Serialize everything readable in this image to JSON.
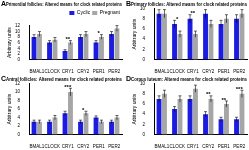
{
  "chart_data": [
    {
      "type": "bar",
      "panel_label": "A",
      "title": "Primordial follicles: Altered means for clock related proteins",
      "y_label": "Arbitrary units",
      "legend": "top-right",
      "categories": [
        "BMAL1",
        "CLOCK",
        "CRY1",
        "CRY2",
        "PER1",
        "PER2"
      ],
      "series": [
        {
          "name": "Cyclic",
          "color": "#1c1ce0",
          "values": [
            8,
            6,
            3,
            8,
            6,
            9
          ],
          "errors": [
            0.8,
            0.7,
            0.5,
            0.8,
            0.7,
            0.9
          ]
        },
        {
          "name": "Pregnant",
          "color": "#a6a6a6",
          "values": [
            9,
            7,
            6,
            9,
            8,
            11
          ],
          "errors": [
            0.9,
            0.8,
            0.7,
            0.9,
            0.8,
            1
          ]
        }
      ],
      "annotations": [
        {
          "category": "CRY1",
          "text": "**"
        },
        {
          "category": "PER1",
          "text": "*"
        }
      ],
      "ylim": [
        0,
        12
      ],
      "yticks": [
        0,
        2,
        4,
        6,
        8,
        10,
        12
      ]
    },
    {
      "type": "bar",
      "panel_label": "B",
      "title": "Primary follicles: Altered means for clock related proteins",
      "y_label": "Arbitrary units",
      "categories": [
        "BMAL1",
        "CLOCK",
        "CRY1",
        "CRY2",
        "PER1",
        "PER2"
      ],
      "series": [
        {
          "name": "Cyclic",
          "color": "#1c1ce0",
          "values": [
            9,
            7,
            8,
            9,
            7,
            8
          ],
          "errors": [
            0.8,
            0.7,
            0.8,
            0.8,
            0.7,
            0.8
          ]
        },
        {
          "name": "Pregnant",
          "color": "#a6a6a6",
          "values": [
            9,
            5,
            5,
            7,
            8,
            9
          ],
          "errors": [
            0.8,
            0.6,
            0.6,
            0.7,
            0.8,
            0.8
          ]
        }
      ],
      "annotations": [
        {
          "category": "CLOCK",
          "text": "*"
        },
        {
          "category": "CRY1",
          "text": "**"
        }
      ],
      "ylim": [
        0,
        10
      ],
      "yticks": [
        0,
        2,
        4,
        6,
        8,
        10
      ]
    },
    {
      "type": "bar",
      "panel_label": "C",
      "title": "Antral follicles: Altered means for clock related proteins",
      "y_label": "Arbitrary units",
      "categories": [
        "BMAL1",
        "CLOCK",
        "CRY1",
        "CRY2",
        "PER1",
        "PER2"
      ],
      "series": [
        {
          "name": "Cyclic",
          "color": "#1c1ce0",
          "values": [
            3,
            3,
            5,
            3,
            4,
            3
          ],
          "errors": [
            0.4,
            0.4,
            0.5,
            0.4,
            0.4,
            0.4
          ]
        },
        {
          "name": "Pregnant",
          "color": "#a6a6a6",
          "values": [
            3,
            4,
            10,
            5,
            3,
            4
          ],
          "errors": [
            0.4,
            0.5,
            0.9,
            0.5,
            0.4,
            0.5
          ]
        }
      ],
      "annotations": [
        {
          "category": "CRY1",
          "text": "***"
        },
        {
          "category": "CRY2",
          "text": "*"
        }
      ],
      "ylim": [
        0,
        12
      ],
      "yticks": [
        0,
        2,
        4,
        6,
        8,
        10,
        12
      ]
    },
    {
      "type": "bar",
      "panel_label": "D",
      "title": "Corpus luteum: Altered means for clock related proteins",
      "y_label": "Arbitrary units",
      "categories": [
        "BMAL1",
        "CLOCK",
        "CRY1",
        "CRY2",
        "PER1",
        "PER2"
      ],
      "series": [
        {
          "name": "Cyclic",
          "color": "#1c1ce0",
          "values": [
            7,
            5,
            7,
            4,
            3,
            3
          ],
          "errors": [
            0.6,
            0.5,
            0.6,
            0.5,
            0.4,
            0.4
          ]
        },
        {
          "name": "Pregnant",
          "color": "#a6a6a6",
          "values": [
            8,
            7,
            9,
            7,
            6,
            8
          ],
          "errors": [
            0.7,
            0.6,
            0.7,
            0.6,
            0.6,
            0.7
          ]
        }
      ],
      "annotations": [
        {
          "category": "CRY2",
          "text": "**"
        },
        {
          "category": "PER1",
          "text": "**"
        },
        {
          "category": "PER2",
          "text": "***"
        }
      ],
      "ylim": [
        0,
        10
      ],
      "yticks": [
        0,
        2,
        4,
        6,
        8,
        10
      ]
    }
  ]
}
